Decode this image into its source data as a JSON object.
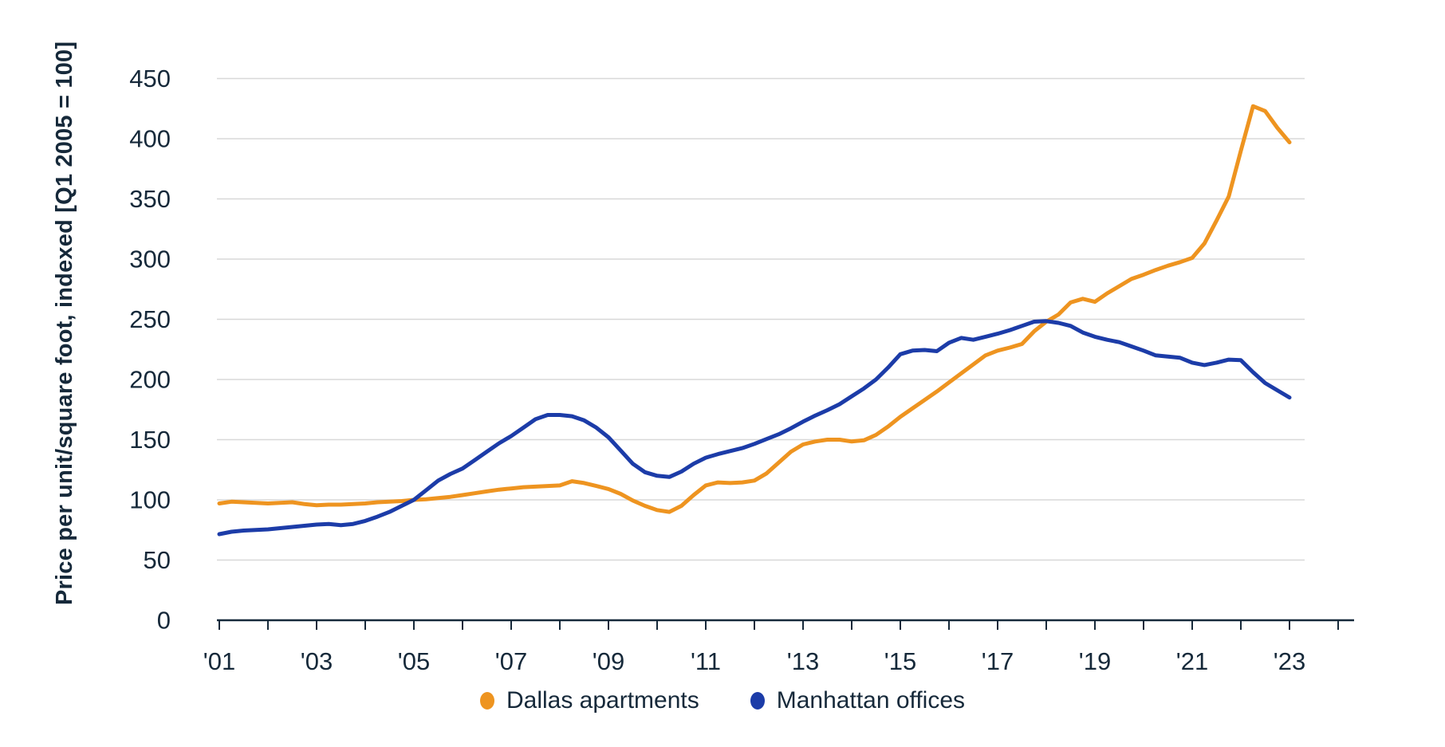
{
  "page": {
    "background": "#ffffff"
  },
  "chart_data": {
    "type": "line",
    "title": "",
    "ylabel": "Price per unit/square foot, indexed [Q1 2005 = 100]",
    "xlabel": "",
    "x_unit": "quarterly",
    "x_start": 2001,
    "x_step": 0.25,
    "x_axis": {
      "tick_start": 2001,
      "tick_end": 2024,
      "tick_interval": 1,
      "labels": [
        {
          "t": 2001,
          "text": "'01"
        },
        {
          "t": 2003,
          "text": "'03"
        },
        {
          "t": 2005,
          "text": "'05"
        },
        {
          "t": 2007,
          "text": "'07"
        },
        {
          "t": 2009,
          "text": "'09"
        },
        {
          "t": 2011,
          "text": "'11"
        },
        {
          "t": 2013,
          "text": "'13"
        },
        {
          "t": 2015,
          "text": "'15"
        },
        {
          "t": 2017,
          "text": "'17"
        },
        {
          "t": 2019,
          "text": "'19"
        },
        {
          "t": 2021,
          "text": "'21"
        },
        {
          "t": 2023,
          "text": "'23"
        }
      ]
    },
    "y_axis": {
      "min": 0,
      "max": 450,
      "step": 50
    },
    "grid": "horizontal",
    "legend_position": "bottom-center",
    "colors": {
      "text": "#16293A",
      "grid": "#D8D8D8",
      "axis": "#16293A",
      "dallas": "#EE9420",
      "manhattan": "#1C3CA8"
    },
    "series": [
      {
        "name": "Dallas apartments",
        "color": "#EE9420",
        "values": [
          97,
          98.5,
          98,
          97.5,
          97,
          97.5,
          98,
          96.5,
          95.5,
          96,
          96,
          96.5,
          97,
          98,
          98.5,
          99,
          100,
          100.5,
          101.5,
          102.5,
          104,
          105.5,
          107,
          108.5,
          109.5,
          110.5,
          111,
          111.5,
          112,
          115.5,
          114,
          111.5,
          109,
          105,
          99.5,
          95,
          91.5,
          90,
          95,
          104,
          112,
          114.5,
          114,
          114.5,
          116,
          122,
          131,
          140,
          146,
          148.5,
          150,
          150,
          148.5,
          149.5,
          154,
          161,
          169,
          176,
          183,
          190,
          197.5,
          205,
          212.5,
          220,
          224,
          226.5,
          229.5,
          240,
          248,
          254,
          264,
          267,
          264.5,
          271.5,
          277.5,
          283.5,
          287,
          291,
          294.5,
          297.5,
          301,
          313,
          332,
          352,
          390,
          427,
          423,
          409,
          397
        ]
      },
      {
        "name": "Manhattan offices",
        "color": "#1C3CA8",
        "values": [
          71.5,
          73.5,
          74.5,
          75,
          75.5,
          76.5,
          77.5,
          78.5,
          79.5,
          80,
          79,
          80,
          82.5,
          86,
          90,
          95,
          100,
          108,
          116,
          121.5,
          126,
          133,
          140,
          147,
          153,
          160,
          167,
          170.5,
          170.5,
          169.5,
          166,
          160,
          152,
          141,
          130,
          123,
          120,
          119,
          123.5,
          130,
          135,
          138,
          140.5,
          143,
          146.5,
          150.5,
          154.5,
          159.5,
          165,
          170,
          174.5,
          179.5,
          186,
          192.5,
          200,
          210,
          221,
          224,
          224.5,
          223.5,
          230.5,
          234.5,
          233,
          235.5,
          238,
          241,
          244.5,
          248,
          248.5,
          247,
          244.5,
          239,
          235.5,
          233,
          231,
          227.5,
          224,
          220,
          219,
          218,
          214,
          212,
          214,
          216.5,
          216,
          206,
          197,
          191,
          185
        ]
      }
    ]
  }
}
